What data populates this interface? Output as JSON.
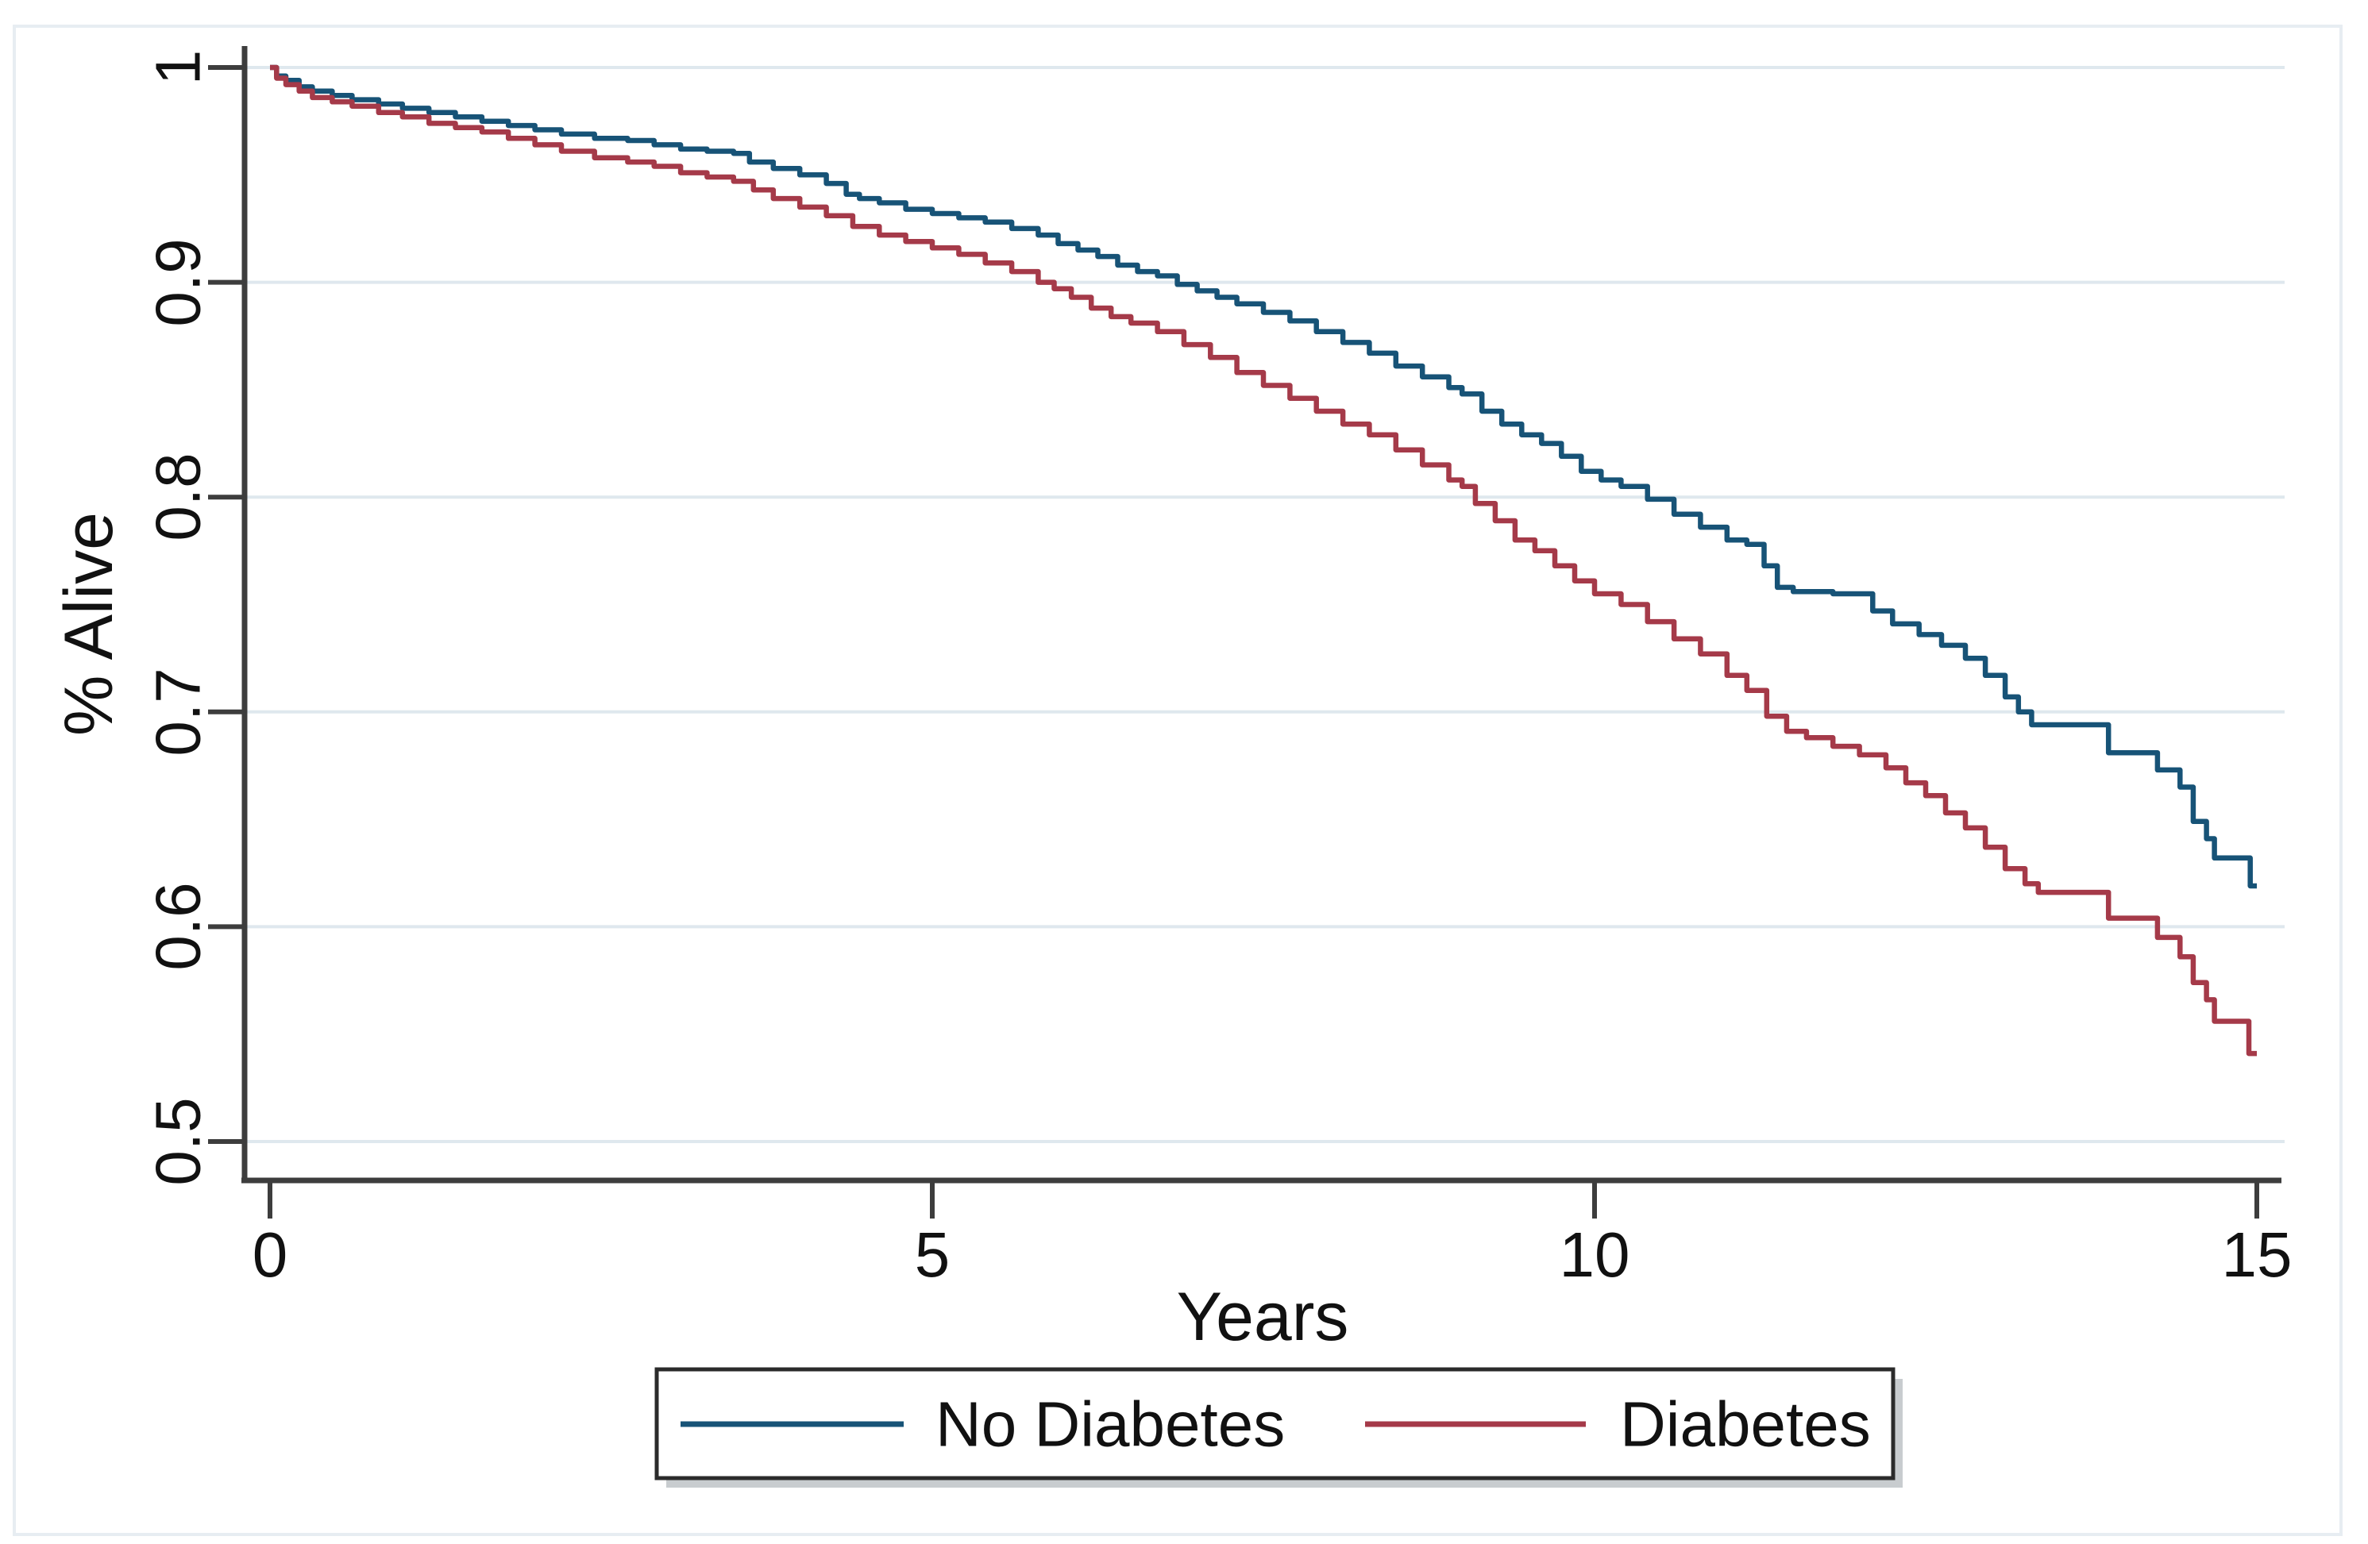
{
  "figure": {
    "kind": "kaplan-meier-survival-plot",
    "xlabel": "Years",
    "ylabel": "% Alive"
  },
  "axes": {
    "x_tick_labels": [
      "0",
      "5",
      "10",
      "15"
    ],
    "y_tick_labels": [
      "1",
      "0.9",
      "0.8",
      "0.7",
      "0.6",
      "0.5"
    ]
  },
  "colors": {
    "no_diabetes": "#175377",
    "diabetes": "#a53a49",
    "grid": "#dfe8ee",
    "axis": "#3d3d3d",
    "text": "#111111",
    "frame": "#e7edf2",
    "legend_border": "#2b2b2b",
    "legend_shadow": "#aab0b6",
    "background": "#ffffff"
  },
  "chart_data": {
    "type": "line",
    "subtype": "kaplan-meier-step",
    "title": "",
    "xlabel": "Years",
    "ylabel": "% Alive",
    "xlim": [
      0,
      15
    ],
    "ylim": [
      0.5,
      1.0
    ],
    "xticks": [
      0,
      5,
      10,
      15
    ],
    "yticks": [
      1,
      0.9,
      0.8,
      0.7,
      0.6,
      0.5
    ],
    "grid": true,
    "legend_position": "bottom",
    "series": [
      {
        "name": "No Diabetes",
        "color": "#175377",
        "points": [
          [
            0,
            1
          ],
          [
            0.05,
            0.996
          ],
          [
            0.12,
            0.994
          ],
          [
            0.22,
            0.991
          ],
          [
            0.32,
            0.989
          ],
          [
            0.47,
            0.987
          ],
          [
            0.62,
            0.985
          ],
          [
            0.82,
            0.983
          ],
          [
            1.0,
            0.981
          ],
          [
            1.2,
            0.979
          ],
          [
            1.4,
            0.977
          ],
          [
            1.6,
            0.975
          ],
          [
            1.8,
            0.973
          ],
          [
            2.0,
            0.971
          ],
          [
            2.2,
            0.969
          ],
          [
            2.45,
            0.967
          ],
          [
            2.7,
            0.966
          ],
          [
            2.9,
            0.964
          ],
          [
            3.1,
            0.962
          ],
          [
            3.3,
            0.961
          ],
          [
            3.5,
            0.96
          ],
          [
            3.62,
            0.956
          ],
          [
            3.8,
            0.953
          ],
          [
            4.0,
            0.95
          ],
          [
            4.2,
            0.946
          ],
          [
            4.35,
            0.941
          ],
          [
            4.45,
            0.939
          ],
          [
            4.6,
            0.937
          ],
          [
            4.8,
            0.934
          ],
          [
            5.0,
            0.932
          ],
          [
            5.2,
            0.93
          ],
          [
            5.4,
            0.928
          ],
          [
            5.6,
            0.925
          ],
          [
            5.8,
            0.922
          ],
          [
            5.95,
            0.918
          ],
          [
            6.1,
            0.915
          ],
          [
            6.25,
            0.912
          ],
          [
            6.4,
            0.908
          ],
          [
            6.55,
            0.905
          ],
          [
            6.7,
            0.903
          ],
          [
            6.85,
            0.899
          ],
          [
            7.0,
            0.896
          ],
          [
            7.15,
            0.893
          ],
          [
            7.3,
            0.89
          ],
          [
            7.5,
            0.886
          ],
          [
            7.7,
            0.882
          ],
          [
            7.9,
            0.877
          ],
          [
            8.1,
            0.872
          ],
          [
            8.3,
            0.867
          ],
          [
            8.5,
            0.861
          ],
          [
            8.7,
            0.856
          ],
          [
            8.9,
            0.851
          ],
          [
            9.0,
            0.848
          ],
          [
            9.15,
            0.84
          ],
          [
            9.3,
            0.834
          ],
          [
            9.45,
            0.829
          ],
          [
            9.6,
            0.825
          ],
          [
            9.75,
            0.819
          ],
          [
            9.9,
            0.812
          ],
          [
            10.05,
            0.808
          ],
          [
            10.2,
            0.805
          ],
          [
            10.4,
            0.799
          ],
          [
            10.6,
            0.792
          ],
          [
            10.8,
            0.786
          ],
          [
            11.0,
            0.78
          ],
          [
            11.15,
            0.778
          ],
          [
            11.28,
            0.768
          ],
          [
            11.38,
            0.758
          ],
          [
            11.5,
            0.756
          ],
          [
            11.8,
            0.755
          ],
          [
            12.1,
            0.747
          ],
          [
            12.25,
            0.741
          ],
          [
            12.45,
            0.736
          ],
          [
            12.62,
            0.731
          ],
          [
            12.8,
            0.725
          ],
          [
            12.95,
            0.717
          ],
          [
            13.1,
            0.707
          ],
          [
            13.2,
            0.7
          ],
          [
            13.3,
            0.694
          ],
          [
            13.88,
            0.681
          ],
          [
            14.25,
            0.673
          ],
          [
            14.42,
            0.665
          ],
          [
            14.52,
            0.649
          ],
          [
            14.62,
            0.641
          ],
          [
            14.68,
            0.632
          ],
          [
            14.95,
            0.619
          ],
          [
            15.0,
            0.619
          ]
        ]
      },
      {
        "name": "Diabetes",
        "color": "#a53a49",
        "points": [
          [
            0,
            1
          ],
          [
            0.05,
            0.995
          ],
          [
            0.12,
            0.992
          ],
          [
            0.22,
            0.989
          ],
          [
            0.32,
            0.986
          ],
          [
            0.47,
            0.984
          ],
          [
            0.62,
            0.982
          ],
          [
            0.82,
            0.979
          ],
          [
            1.0,
            0.977
          ],
          [
            1.2,
            0.974
          ],
          [
            1.4,
            0.972
          ],
          [
            1.6,
            0.97
          ],
          [
            1.8,
            0.967
          ],
          [
            2.0,
            0.964
          ],
          [
            2.2,
            0.961
          ],
          [
            2.45,
            0.958
          ],
          [
            2.7,
            0.956
          ],
          [
            2.9,
            0.954
          ],
          [
            3.1,
            0.951
          ],
          [
            3.3,
            0.949
          ],
          [
            3.5,
            0.947
          ],
          [
            3.65,
            0.943
          ],
          [
            3.8,
            0.939
          ],
          [
            4.0,
            0.935
          ],
          [
            4.2,
            0.931
          ],
          [
            4.4,
            0.926
          ],
          [
            4.6,
            0.922
          ],
          [
            4.8,
            0.919
          ],
          [
            5.0,
            0.916
          ],
          [
            5.2,
            0.913
          ],
          [
            5.4,
            0.909
          ],
          [
            5.6,
            0.905
          ],
          [
            5.8,
            0.9
          ],
          [
            5.92,
            0.897
          ],
          [
            6.05,
            0.893
          ],
          [
            6.2,
            0.888
          ],
          [
            6.35,
            0.884
          ],
          [
            6.5,
            0.881
          ],
          [
            6.7,
            0.877
          ],
          [
            6.9,
            0.871
          ],
          [
            7.1,
            0.865
          ],
          [
            7.3,
            0.858
          ],
          [
            7.5,
            0.852
          ],
          [
            7.7,
            0.846
          ],
          [
            7.9,
            0.84
          ],
          [
            8.1,
            0.834
          ],
          [
            8.3,
            0.829
          ],
          [
            8.5,
            0.822
          ],
          [
            8.7,
            0.815
          ],
          [
            8.9,
            0.808
          ],
          [
            9.0,
            0.805
          ],
          [
            9.1,
            0.797
          ],
          [
            9.25,
            0.789
          ],
          [
            9.4,
            0.78
          ],
          [
            9.55,
            0.775
          ],
          [
            9.7,
            0.768
          ],
          [
            9.85,
            0.761
          ],
          [
            10.0,
            0.755
          ],
          [
            10.2,
            0.75
          ],
          [
            10.4,
            0.742
          ],
          [
            10.6,
            0.734
          ],
          [
            10.8,
            0.727
          ],
          [
            11.0,
            0.717
          ],
          [
            11.15,
            0.71
          ],
          [
            11.3,
            0.698
          ],
          [
            11.45,
            0.691
          ],
          [
            11.6,
            0.688
          ],
          [
            11.8,
            0.684
          ],
          [
            12.0,
            0.68
          ],
          [
            12.2,
            0.674
          ],
          [
            12.35,
            0.667
          ],
          [
            12.5,
            0.661
          ],
          [
            12.65,
            0.653
          ],
          [
            12.8,
            0.646
          ],
          [
            12.95,
            0.637
          ],
          [
            13.1,
            0.627
          ],
          [
            13.25,
            0.62
          ],
          [
            13.35,
            0.616
          ],
          [
            13.88,
            0.604
          ],
          [
            14.25,
            0.595
          ],
          [
            14.42,
            0.586
          ],
          [
            14.52,
            0.574
          ],
          [
            14.62,
            0.566
          ],
          [
            14.68,
            0.556
          ],
          [
            14.94,
            0.541
          ],
          [
            15.0,
            0.541
          ]
        ]
      }
    ]
  },
  "legend": {
    "items": [
      {
        "label": "No Diabetes"
      },
      {
        "label": "Diabetes"
      }
    ]
  }
}
